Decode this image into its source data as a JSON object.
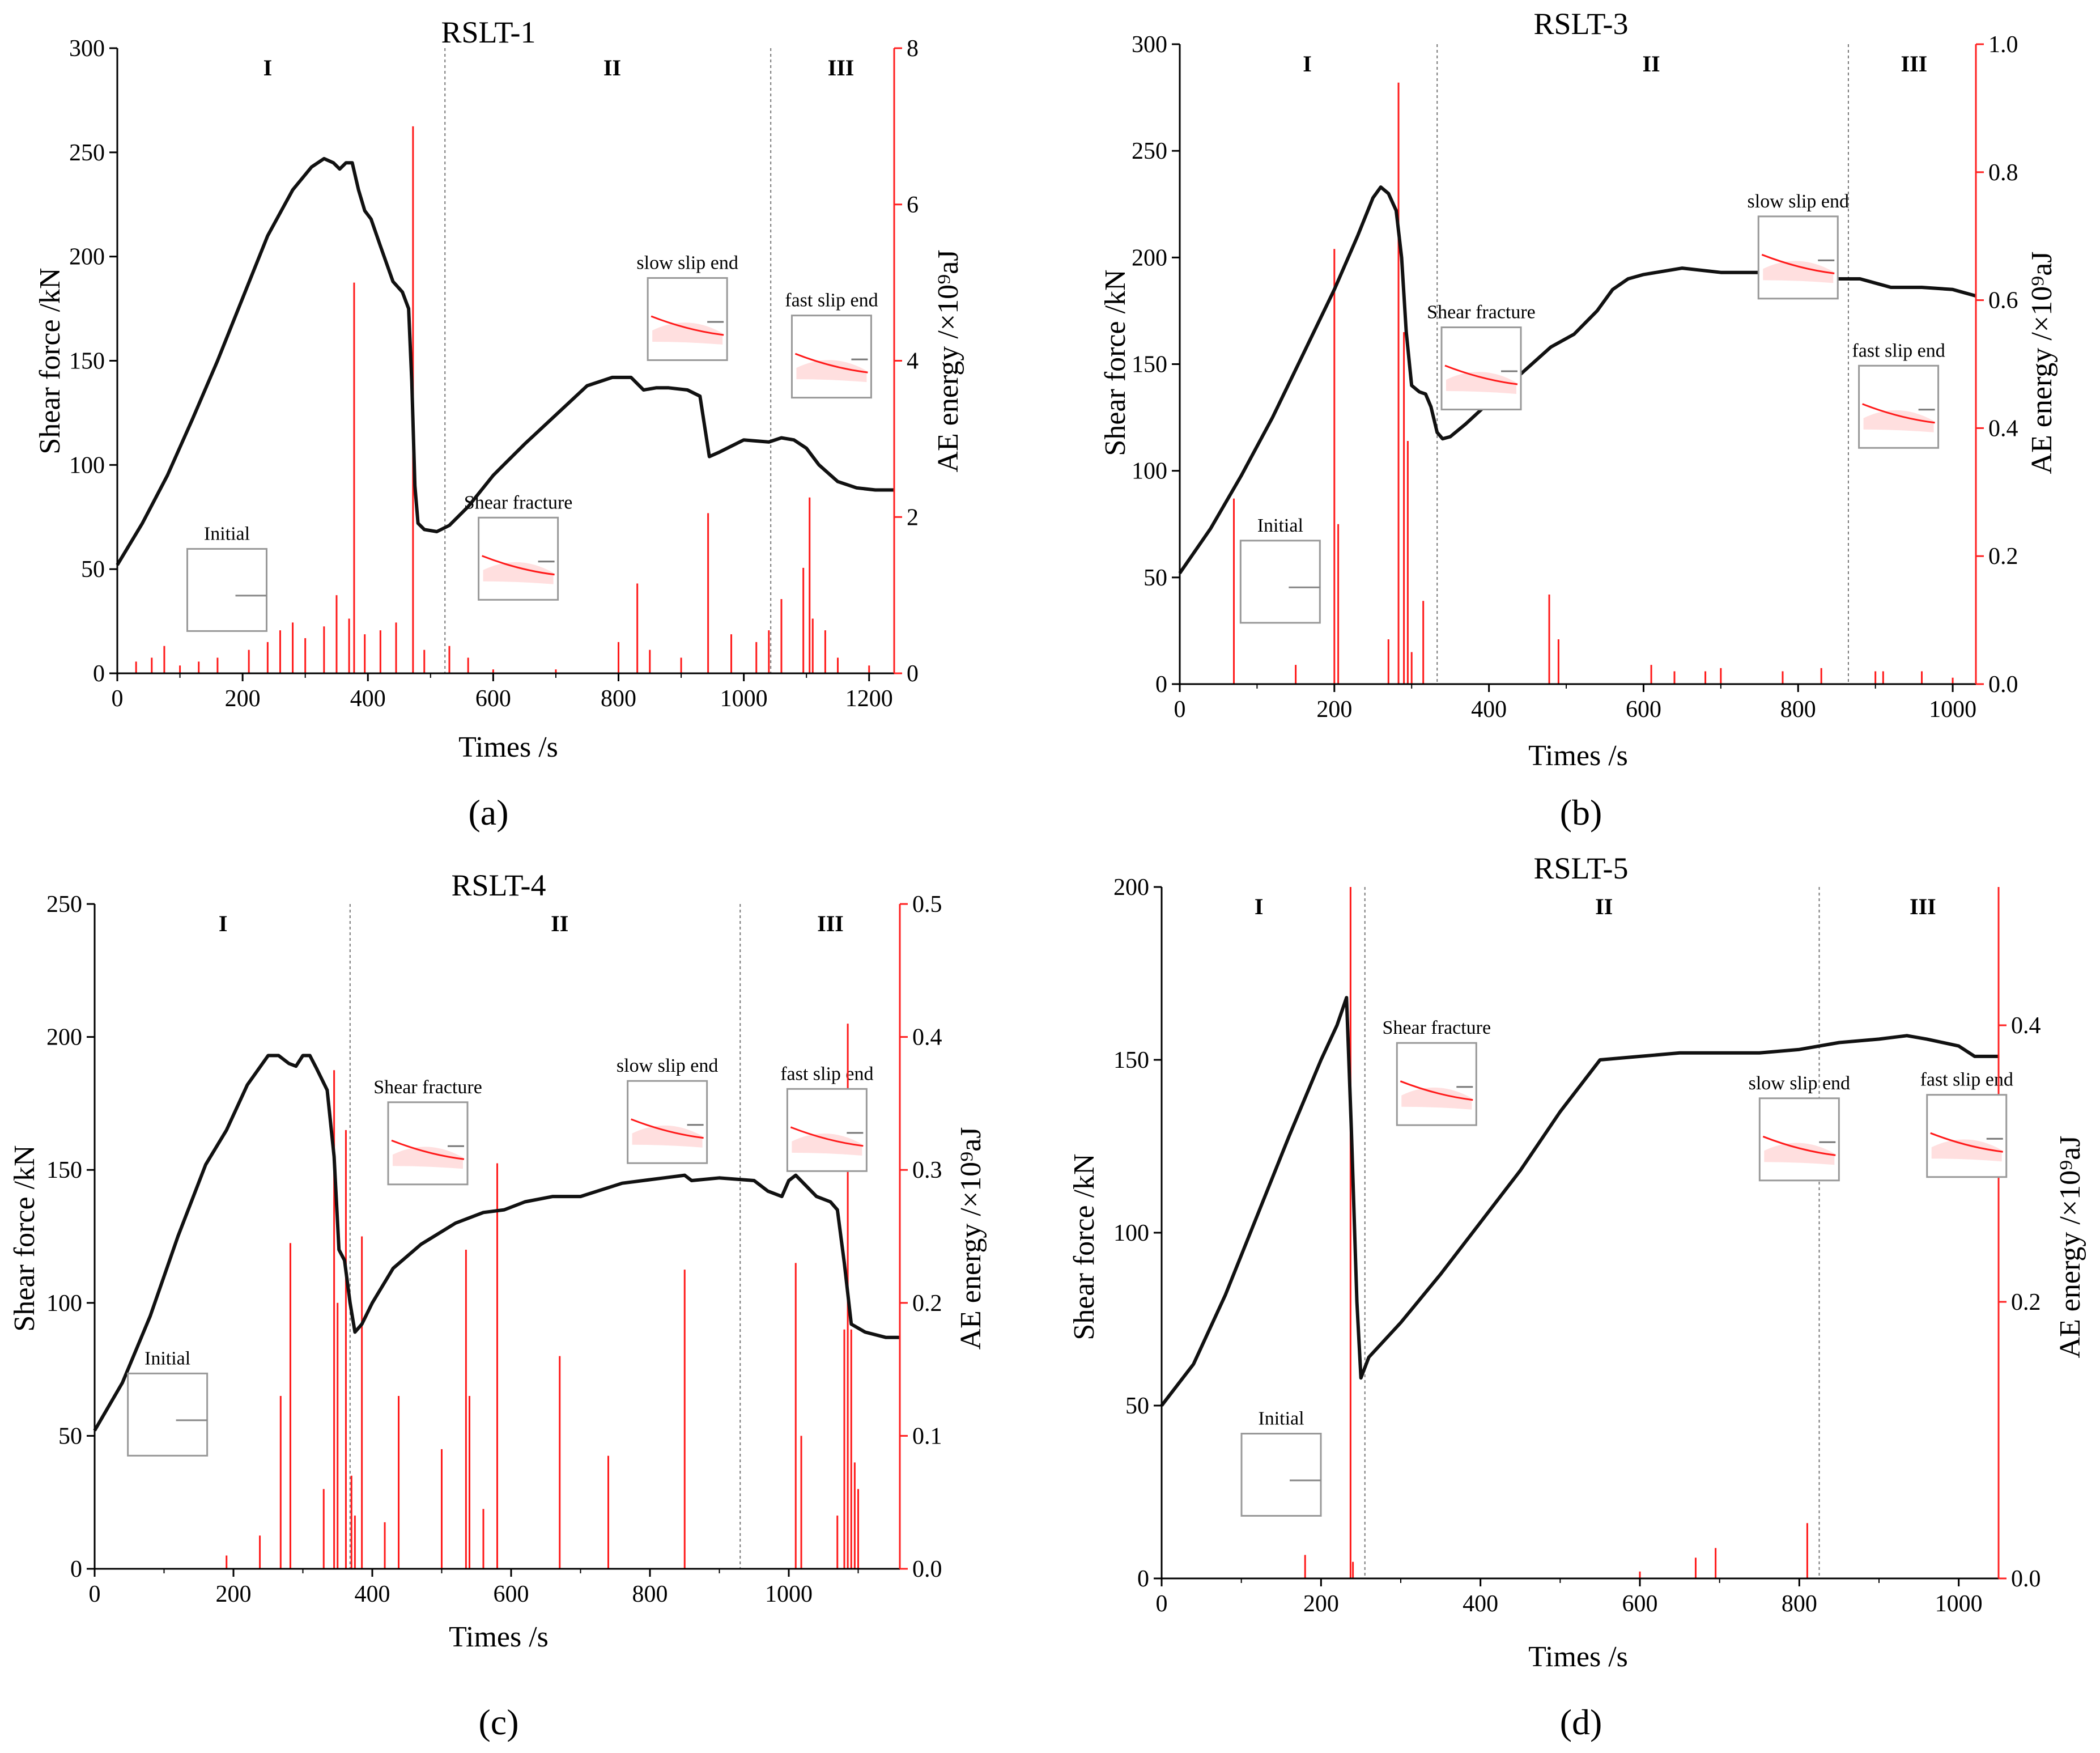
{
  "colors": {
    "force": "#111111",
    "ae": "#ff1a1a",
    "axis_right": "#ff2020",
    "divider": "#777777",
    "inset_border": "#999999"
  },
  "chart_data": [
    {
      "panel": "(a)",
      "type": "line",
      "title": "RSLT-1",
      "xlabel": "Times /s",
      "ylabel": "Shear force /kN",
      "y2label": "AE energy /×10⁹aJ",
      "xlim": [
        0,
        1240
      ],
      "ylim": [
        0,
        300
      ],
      "y2lim": [
        0,
        8
      ],
      "xticks": [
        0,
        200,
        400,
        600,
        800,
        1000,
        1200
      ],
      "yticks": [
        0,
        50,
        100,
        150,
        200,
        250,
        300
      ],
      "y2ticks": [
        0,
        2,
        4,
        6,
        8
      ],
      "stages": [
        {
          "label": "I",
          "x": 240
        },
        {
          "label": "II",
          "x": 790
        },
        {
          "label": "III",
          "x": 1155
        }
      ],
      "dividers": [
        523,
        1043
      ],
      "force_series": {
        "name": "Shear force",
        "x": [
          0,
          40,
          80,
          120,
          160,
          200,
          240,
          280,
          310,
          330,
          345,
          355,
          365,
          375,
          385,
          395,
          405,
          420,
          440,
          455,
          465,
          470,
          475,
          480,
          490,
          510,
          530,
          560,
          600,
          650,
          700,
          750,
          790,
          820,
          840,
          860,
          880,
          910,
          930,
          945,
          960,
          1000,
          1040,
          1060,
          1080,
          1100,
          1120,
          1150,
          1180,
          1210,
          1240
        ],
        "y": [
          52,
          72,
          95,
          122,
          150,
          180,
          210,
          232,
          243,
          247,
          245,
          242,
          245,
          245,
          232,
          222,
          218,
          205,
          188,
          183,
          175,
          140,
          90,
          72,
          69,
          68,
          71,
          80,
          95,
          110,
          124,
          138,
          142,
          142,
          136,
          137,
          137,
          136,
          133,
          104,
          106,
          112,
          111,
          113,
          112,
          108,
          100,
          92,
          89,
          88,
          88
        ]
      },
      "ae_series": {
        "name": "AE energy",
        "x": [
          30,
          55,
          75,
          100,
          130,
          160,
          210,
          240,
          260,
          280,
          300,
          330,
          350,
          370,
          378,
          395,
          420,
          445,
          472,
          490,
          530,
          560,
          600,
          700,
          800,
          830,
          850,
          900,
          943,
          980,
          1020,
          1040,
          1060,
          1095,
          1105,
          1110,
          1130,
          1150,
          1200
        ],
        "y": [
          0.15,
          0.2,
          0.35,
          0.1,
          0.15,
          0.2,
          0.3,
          0.4,
          0.55,
          0.65,
          0.45,
          0.6,
          1.0,
          0.7,
          5.0,
          0.5,
          0.55,
          0.65,
          7.0,
          0.3,
          0.35,
          0.2,
          0.05,
          0.05,
          0.4,
          1.15,
          0.3,
          0.2,
          2.05,
          0.5,
          0.4,
          0.55,
          0.95,
          1.35,
          2.25,
          0.7,
          0.55,
          0.2,
          0.1
        ]
      },
      "insets": [
        {
          "label": "Initial",
          "t": 175,
          "f": 40
        },
        {
          "label": "Shear fracture",
          "t": 640,
          "f": 55
        },
        {
          "label": "slow slip end",
          "t": 910,
          "f": 170
        },
        {
          "label": "fast slip end",
          "t": 1140,
          "f": 152
        }
      ]
    },
    {
      "panel": "(b)",
      "type": "line",
      "title": "RSLT-3",
      "xlabel": "Times /s",
      "ylabel": "Shear force /kN",
      "y2label": "AE energy /×10⁹aJ",
      "xlim": [
        0,
        1030
      ],
      "ylim": [
        0,
        300
      ],
      "y2lim": [
        0,
        1.0
      ],
      "xticks": [
        0,
        200,
        400,
        600,
        800,
        1000
      ],
      "yticks": [
        0,
        50,
        100,
        150,
        200,
        250,
        300
      ],
      "y2ticks": [
        0.0,
        0.2,
        0.4,
        0.6,
        0.8,
        1.0
      ],
      "stages": [
        {
          "label": "I",
          "x": 165
        },
        {
          "label": "II",
          "x": 610
        },
        {
          "label": "III",
          "x": 950
        }
      ],
      "dividers": [
        333,
        865
      ],
      "force_series": {
        "name": "Shear force",
        "x": [
          0,
          40,
          80,
          120,
          160,
          200,
          230,
          250,
          260,
          270,
          280,
          287,
          293,
          300,
          310,
          318,
          325,
          333,
          340,
          350,
          370,
          400,
          440,
          480,
          510,
          540,
          560,
          580,
          600,
          650,
          700,
          750,
          800,
          850,
          880,
          920,
          960,
          1000,
          1030
        ],
        "y": [
          52,
          73,
          98,
          125,
          155,
          185,
          210,
          228,
          233,
          230,
          222,
          200,
          165,
          140,
          137,
          136,
          130,
          118,
          115,
          116,
          122,
          132,
          145,
          158,
          164,
          175,
          185,
          190,
          192,
          195,
          193,
          193,
          192,
          190,
          190,
          186,
          186,
          185,
          182
        ]
      },
      "ae_series": {
        "name": "AE energy",
        "x": [
          70,
          150,
          200,
          205,
          270,
          283,
          290,
          295,
          300,
          315,
          478,
          490,
          610,
          640,
          680,
          700,
          780,
          830,
          900,
          910,
          960,
          1000,
          1030
        ],
        "y": [
          0.29,
          0.03,
          0.68,
          0.25,
          0.07,
          0.94,
          0.55,
          0.38,
          0.05,
          0.13,
          0.14,
          0.07,
          0.03,
          0.02,
          0.02,
          0.025,
          0.02,
          0.025,
          0.02,
          0.02,
          0.02,
          0.01,
          0.025
        ]
      },
      "insets": [
        {
          "label": "Initial",
          "t": 130,
          "f": 48
        },
        {
          "label": "Shear fracture",
          "t": 390,
          "f": 148
        },
        {
          "label": "slow slip end",
          "t": 800,
          "f": 200
        },
        {
          "label": "fast slip end",
          "t": 930,
          "f": 130
        }
      ]
    },
    {
      "panel": "(c)",
      "type": "line",
      "title": "RSLT-4",
      "xlabel": "Times /s",
      "ylabel": "Shear force /kN",
      "y2label": "AE energy /×10⁹aJ",
      "xlim": [
        0,
        1160
      ],
      "ylim": [
        0,
        250
      ],
      "y2lim": [
        0,
        0.5
      ],
      "xticks": [
        0,
        200,
        400,
        600,
        800,
        1000
      ],
      "yticks": [
        0,
        50,
        100,
        150,
        200,
        250
      ],
      "y2ticks": [
        0.0,
        0.1,
        0.2,
        0.3,
        0.4,
        0.5
      ],
      "stages": [
        {
          "label": "I",
          "x": 185
        },
        {
          "label": "II",
          "x": 670
        },
        {
          "label": "III",
          "x": 1060
        }
      ],
      "dividers": [
        368,
        930
      ],
      "force_series": {
        "name": "Shear force",
        "x": [
          0,
          40,
          80,
          120,
          160,
          190,
          220,
          250,
          265,
          280,
          290,
          300,
          310,
          320,
          335,
          345,
          352,
          360,
          368,
          375,
          385,
          400,
          430,
          470,
          520,
          560,
          590,
          620,
          660,
          700,
          760,
          820,
          850,
          860,
          900,
          950,
          970,
          990,
          1000,
          1010,
          1040,
          1060,
          1070,
          1080,
          1090,
          1110,
          1140,
          1160
        ],
        "y": [
          52,
          70,
          95,
          125,
          152,
          165,
          182,
          193,
          193,
          190,
          189,
          193,
          193,
          188,
          180,
          155,
          120,
          116,
          100,
          89,
          92,
          100,
          113,
          122,
          130,
          134,
          135,
          138,
          140,
          140,
          145,
          147,
          148,
          146,
          147,
          146,
          142,
          140,
          146,
          148,
          140,
          138,
          135,
          115,
          92,
          89,
          87,
          87
        ]
      },
      "ae_series": {
        "name": "AE energy",
        "x": [
          190,
          238,
          268,
          282,
          330,
          345,
          350,
          362,
          370,
          375,
          385,
          418,
          438,
          500,
          535,
          540,
          560,
          580,
          670,
          740,
          850,
          1010,
          1018,
          1070,
          1080,
          1085,
          1090,
          1095,
          1100
        ],
        "y": [
          0.01,
          0.025,
          0.13,
          0.245,
          0.06,
          0.375,
          0.2,
          0.33,
          0.07,
          0.04,
          0.25,
          0.035,
          0.13,
          0.09,
          0.24,
          0.13,
          0.045,
          0.305,
          0.16,
          0.085,
          0.225,
          0.23,
          0.1,
          0.04,
          0.18,
          0.41,
          0.18,
          0.08,
          0.06
        ]
      },
      "insets": [
        {
          "label": "Initial",
          "t": 105,
          "f": 58
        },
        {
          "label": "Shear fracture",
          "t": 480,
          "f": 160
        },
        {
          "label": "slow slip end",
          "t": 825,
          "f": 168
        },
        {
          "label": "fast slip end",
          "t": 1055,
          "f": 165
        }
      ]
    },
    {
      "panel": "(d)",
      "type": "line",
      "title": "RSLT-5",
      "xlabel": "Times /s",
      "ylabel": "Shear force /kN",
      "y2label": "AE energy /×10⁹aJ",
      "xlim": [
        0,
        1050
      ],
      "ylim": [
        0,
        200
      ],
      "y2lim": [
        0,
        0.5
      ],
      "xticks": [
        0,
        200,
        400,
        600,
        800,
        1000
      ],
      "yticks": [
        0,
        50,
        100,
        150,
        200
      ],
      "y2ticks": [
        0.0,
        0.2,
        0.4
      ],
      "stages": [
        {
          "label": "I",
          "x": 122
        },
        {
          "label": "II",
          "x": 555
        },
        {
          "label": "III",
          "x": 955
        }
      ],
      "dividers": [
        255,
        825
      ],
      "force_series": {
        "name": "Shear force",
        "x": [
          0,
          40,
          80,
          120,
          160,
          200,
          220,
          232,
          238,
          245,
          250,
          260,
          300,
          350,
          400,
          450,
          500,
          550,
          600,
          650,
          700,
          750,
          800,
          850,
          900,
          935,
          960,
          1000,
          1020,
          1050
        ],
        "y": [
          50,
          62,
          82,
          105,
          128,
          150,
          160,
          168,
          130,
          80,
          58,
          64,
          74,
          88,
          103,
          118,
          135,
          150,
          151,
          152,
          152,
          152,
          153,
          155,
          156,
          157,
          156,
          154,
          151,
          151
        ]
      },
      "ae_series": {
        "name": "AE energy",
        "x": [
          180,
          237,
          240,
          600,
          670,
          695,
          810
        ],
        "y": [
          0.017,
          0.5,
          0.012,
          0.005,
          0.015,
          0.022,
          0.04
        ]
      },
      "insets": [
        {
          "label": "Initial",
          "t": 150,
          "f": 30
        },
        {
          "label": "Shear fracture",
          "t": 345,
          "f": 143
        },
        {
          "label": "slow slip end",
          "t": 800,
          "f": 127
        },
        {
          "label": "fast slip end",
          "t": 1010,
          "f": 128
        }
      ]
    }
  ]
}
